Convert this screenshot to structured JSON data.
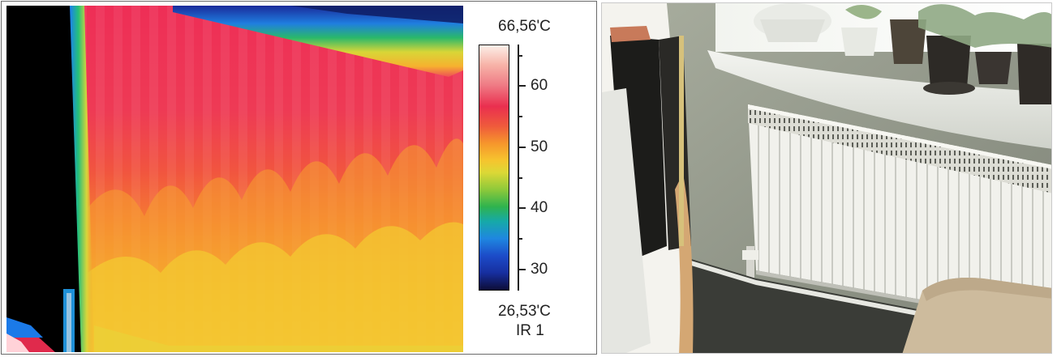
{
  "thermal_panel": {
    "scale": {
      "max_label": "66,56'C",
      "min_label": "26,53'C",
      "image_name": "IR 1",
      "tick_labels": [
        "60",
        "50",
        "40",
        "30"
      ]
    },
    "palette": [
      "#fcefe8",
      "#ea2f4f",
      "#f6952c",
      "#dcd836",
      "#2fb34e",
      "#1f87e0",
      "#0d0d38"
    ]
  },
  "photo_panel": {
    "content": "radiator-under-windowsill"
  }
}
